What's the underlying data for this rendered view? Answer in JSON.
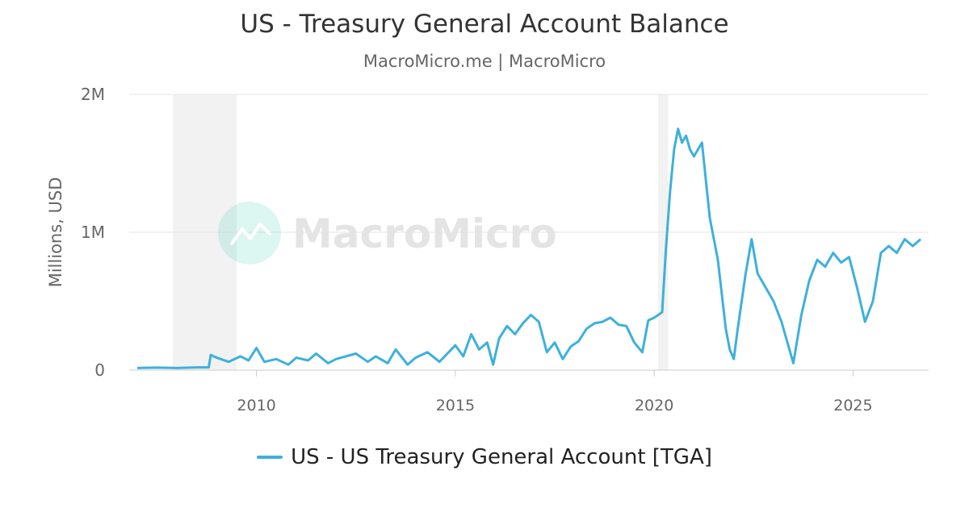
{
  "title": "US - Treasury General Account Balance",
  "subtitle": "MacroMicro.me | MacroMicro",
  "watermark": "MacroMicro",
  "colors": {
    "series": "#3eb0dc",
    "recession": "#f2f2f2",
    "grid": "#e6e6e6",
    "axis_text": "#666666",
    "logo": "#3ecfb0"
  },
  "chart_data": {
    "type": "line",
    "title": "US - Treasury General Account Balance",
    "ylabel": "Millions, USD",
    "xlabel": "",
    "xlim": [
      2006.8,
      2026.9
    ],
    "ylim": [
      0,
      2000000
    ],
    "x_ticks": [
      2010,
      2015,
      2020,
      2025
    ],
    "x_tick_labels": [
      "2010",
      "2015",
      "2020",
      "2025"
    ],
    "y_ticks": [
      0,
      1000000,
      2000000
    ],
    "y_tick_labels": [
      "0",
      "1M",
      "2M"
    ],
    "grid": true,
    "legend_position": "bottom-center",
    "recession_bands": [
      [
        2007.9,
        2009.5
      ],
      [
        2020.1,
        2020.35
      ]
    ],
    "series": [
      {
        "name": "US - US Treasury General Account [TGA]",
        "color": "#3eb0dc",
        "points": [
          [
            2007.0,
            15000
          ],
          [
            2007.5,
            18000
          ],
          [
            2008.0,
            15000
          ],
          [
            2008.5,
            20000
          ],
          [
            2008.8,
            20000
          ],
          [
            2008.85,
            110000
          ],
          [
            2009.0,
            90000
          ],
          [
            2009.3,
            60000
          ],
          [
            2009.6,
            100000
          ],
          [
            2009.8,
            70000
          ],
          [
            2010.0,
            160000
          ],
          [
            2010.2,
            60000
          ],
          [
            2010.5,
            80000
          ],
          [
            2010.8,
            40000
          ],
          [
            2011.0,
            90000
          ],
          [
            2011.3,
            70000
          ],
          [
            2011.5,
            120000
          ],
          [
            2011.8,
            50000
          ],
          [
            2012.0,
            80000
          ],
          [
            2012.5,
            120000
          ],
          [
            2012.8,
            60000
          ],
          [
            2013.0,
            100000
          ],
          [
            2013.3,
            50000
          ],
          [
            2013.5,
            150000
          ],
          [
            2013.8,
            40000
          ],
          [
            2014.0,
            90000
          ],
          [
            2014.3,
            130000
          ],
          [
            2014.6,
            60000
          ],
          [
            2015.0,
            180000
          ],
          [
            2015.2,
            100000
          ],
          [
            2015.4,
            260000
          ],
          [
            2015.6,
            150000
          ],
          [
            2015.8,
            200000
          ],
          [
            2015.95,
            40000
          ],
          [
            2016.1,
            230000
          ],
          [
            2016.3,
            320000
          ],
          [
            2016.5,
            260000
          ],
          [
            2016.7,
            340000
          ],
          [
            2016.9,
            400000
          ],
          [
            2017.1,
            350000
          ],
          [
            2017.3,
            130000
          ],
          [
            2017.5,
            200000
          ],
          [
            2017.7,
            80000
          ],
          [
            2017.9,
            170000
          ],
          [
            2018.1,
            210000
          ],
          [
            2018.3,
            300000
          ],
          [
            2018.5,
            340000
          ],
          [
            2018.7,
            350000
          ],
          [
            2018.9,
            380000
          ],
          [
            2019.1,
            330000
          ],
          [
            2019.3,
            320000
          ],
          [
            2019.5,
            200000
          ],
          [
            2019.7,
            130000
          ],
          [
            2019.85,
            360000
          ],
          [
            2020.0,
            380000
          ],
          [
            2020.2,
            420000
          ],
          [
            2020.3,
            900000
          ],
          [
            2020.4,
            1300000
          ],
          [
            2020.5,
            1600000
          ],
          [
            2020.6,
            1750000
          ],
          [
            2020.7,
            1650000
          ],
          [
            2020.8,
            1700000
          ],
          [
            2020.9,
            1600000
          ],
          [
            2021.0,
            1550000
          ],
          [
            2021.2,
            1650000
          ],
          [
            2021.4,
            1100000
          ],
          [
            2021.6,
            800000
          ],
          [
            2021.8,
            300000
          ],
          [
            2021.9,
            150000
          ],
          [
            2022.0,
            80000
          ],
          [
            2022.1,
            300000
          ],
          [
            2022.3,
            700000
          ],
          [
            2022.45,
            950000
          ],
          [
            2022.6,
            700000
          ],
          [
            2022.8,
            600000
          ],
          [
            2023.0,
            500000
          ],
          [
            2023.2,
            350000
          ],
          [
            2023.4,
            150000
          ],
          [
            2023.5,
            50000
          ],
          [
            2023.7,
            400000
          ],
          [
            2023.9,
            650000
          ],
          [
            2024.1,
            800000
          ],
          [
            2024.3,
            750000
          ],
          [
            2024.5,
            850000
          ],
          [
            2024.7,
            780000
          ],
          [
            2024.9,
            820000
          ],
          [
            2025.1,
            600000
          ],
          [
            2025.3,
            350000
          ],
          [
            2025.5,
            500000
          ],
          [
            2025.7,
            850000
          ],
          [
            2025.9,
            900000
          ],
          [
            2026.1,
            850000
          ],
          [
            2026.3,
            950000
          ],
          [
            2026.5,
            900000
          ],
          [
            2026.7,
            950000
          ]
        ]
      }
    ]
  }
}
